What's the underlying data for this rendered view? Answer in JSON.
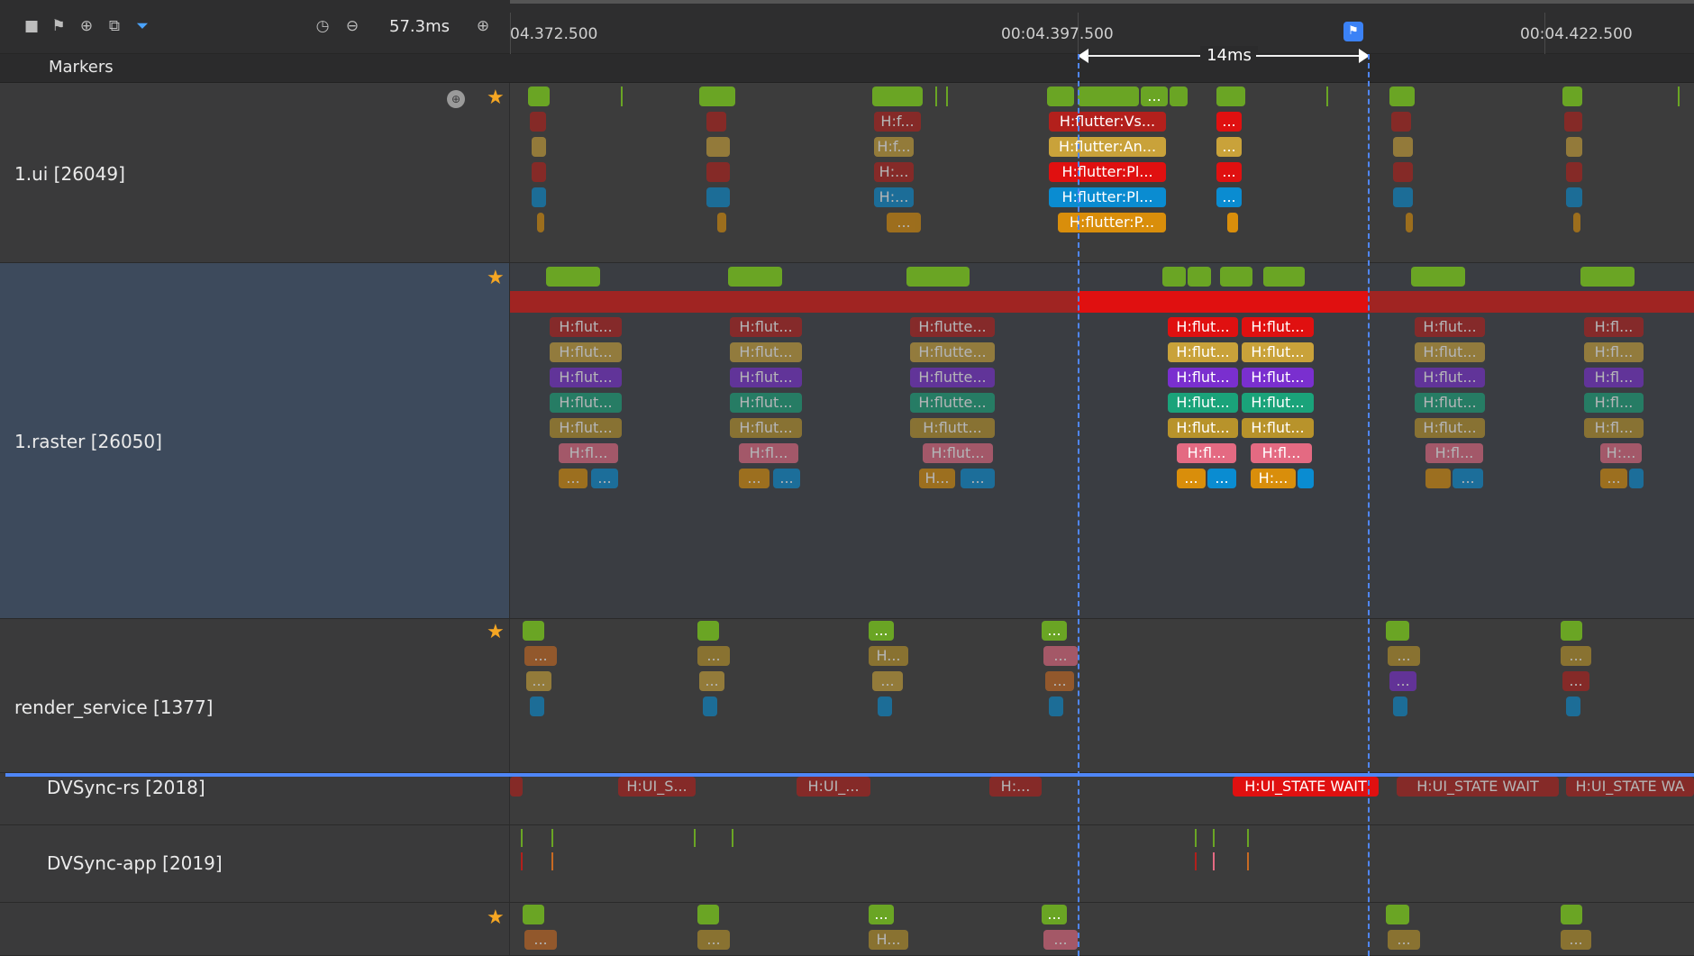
{
  "toolbar": {
    "zoom_value": "57.3ms",
    "icons": [
      "stop-icon",
      "flag-icon",
      "pin-icon",
      "select-icon",
      "filter-icon",
      "timer-icon",
      "zoom-out-icon",
      "zoom-in-icon"
    ]
  },
  "ruler": {
    "ticks": [
      "04.372.500",
      "00:04.397.500",
      "00:04.422.500"
    ],
    "measure_label": "14ms"
  },
  "markers": {
    "label": "Markers"
  },
  "lanes": [
    {
      "name": "1.ui [26049]"
    },
    {
      "name": "1.raster [26050]"
    },
    {
      "name": "render_service [1377]"
    },
    {
      "name": "DVSync-rs [2018]"
    },
    {
      "name": "DVSync-app [2019]"
    }
  ],
  "ui_slices": {
    "a": "H:f...",
    "b": "H:f...",
    "c": "H:...",
    "d": "H:...",
    "e": "...",
    "vs": "H:flutter:Vs...",
    "an": "H:flutter:An...",
    "pl1": "H:flutter:Pl...",
    "pl2": "H:flutter:Pl...",
    "p": "H:flutter:P...",
    "dot": "...",
    "dot2": "...",
    "dot3": "...",
    "dot4": "...",
    "dot5": "..."
  },
  "raster_slices": {
    "flut": "H:flut...",
    "flutte": "H:flutte...",
    "flutt": "H:flutt...",
    "flut2": "H:flut...",
    "fl": "H:fl...",
    "flu": "H:flut...",
    "h": "H:...",
    "hshort": "H...",
    "dots": "..."
  },
  "rs_slices": {
    "dots": "...",
    "h": "H..."
  },
  "dvsync_rs": {
    "s1": "H:UI_S...",
    "s2": "H:UI_...",
    "s3": "H:...",
    "wait1": "H:UI_STATE WAIT",
    "wait2": "H:UI_STATE WAIT",
    "wait3": "H:UI_STATE WA"
  },
  "colors": {
    "accent": "#4f86f7",
    "star": "#f5a623",
    "green": "#6aa524",
    "red": "#b3201c"
  }
}
